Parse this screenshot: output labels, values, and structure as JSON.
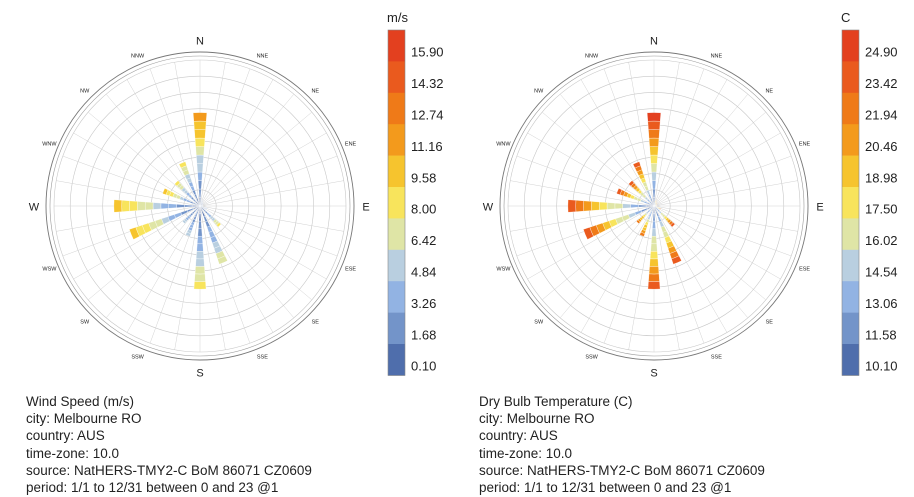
{
  "chart_data": [
    {
      "type": "windrose",
      "directions": [
        "N",
        "NNE",
        "NE",
        "ENE",
        "E",
        "ESE",
        "SE",
        "SSE",
        "S",
        "SSW",
        "SW",
        "WSW",
        "W",
        "WNW",
        "NW",
        "NNW"
      ],
      "legend": {
        "unit": "m/s",
        "labels": [
          "15.90",
          "14.32",
          "12.74",
          "11.16",
          "9.58",
          "8.00",
          "6.42",
          "4.84",
          "3.26",
          "1.68",
          "0.10"
        ],
        "colors": [
          "#e3401f",
          "#ea5a1e",
          "#ef7a18",
          "#f39a1c",
          "#f6c42e",
          "#f8e45c",
          "#dfe5a6",
          "#b9cfe0",
          "#92b3e3",
          "#7394c9",
          "#4f6eac"
        ]
      },
      "petals_max_level": [
        {
          "dir": 0.0,
          "r": 0.64,
          "top": 3
        },
        {
          "dir": 22.5,
          "r": 0.04,
          "top": 9
        },
        {
          "dir": 45.0,
          "r": 0.03,
          "top": 9
        },
        {
          "dir": 67.5,
          "r": 0.02,
          "top": 9
        },
        {
          "dir": 90.0,
          "r": 0.02,
          "top": 9
        },
        {
          "dir": 112.5,
          "r": 0.05,
          "top": 8
        },
        {
          "dir": 135.0,
          "r": 0.19,
          "top": 5
        },
        {
          "dir": 157.5,
          "r": 0.42,
          "top": 6
        },
        {
          "dir": 180.0,
          "r": 0.57,
          "top": 5
        },
        {
          "dir": 202.5,
          "r": 0.22,
          "top": 7
        },
        {
          "dir": 225.0,
          "r": 0.16,
          "top": 7
        },
        {
          "dir": 247.5,
          "r": 0.51,
          "top": 4
        },
        {
          "dir": 270.0,
          "r": 0.59,
          "top": 4
        },
        {
          "dir": 292.5,
          "r": 0.27,
          "top": 4
        },
        {
          "dir": 315.0,
          "r": 0.23,
          "top": 5
        },
        {
          "dir": 337.5,
          "r": 0.32,
          "top": 5
        }
      ],
      "title": "Wind Speed (m/s)",
      "info": [
        "Wind Speed (m/s)",
        "city: Melbourne RO",
        "country: AUS",
        "time-zone: 10.0",
        "source: NatHERS-TMY2-C BoM 86071 CZ0609",
        "period: 1/1 to 12/31 between 0 and 23 @1"
      ]
    },
    {
      "type": "windrose",
      "directions": [
        "N",
        "NNE",
        "NE",
        "ENE",
        "E",
        "ESE",
        "SE",
        "SSE",
        "S",
        "SSW",
        "SW",
        "WSW",
        "W",
        "WNW",
        "NW",
        "NNW"
      ],
      "legend": {
        "unit": "C",
        "labels": [
          "24.90",
          "23.42",
          "21.94",
          "20.46",
          "18.98",
          "17.50",
          "16.02",
          "14.54",
          "13.06",
          "11.58",
          "10.10"
        ],
        "colors": [
          "#e3401f",
          "#ea5a1e",
          "#ef7a18",
          "#f39a1c",
          "#f6c42e",
          "#f8e45c",
          "#dfe5a6",
          "#b9cfe0",
          "#92b3e3",
          "#7394c9",
          "#4f6eac"
        ]
      },
      "petals_max_level": [
        {
          "dir": 0.0,
          "r": 0.64,
          "top": 0
        },
        {
          "dir": 22.5,
          "r": 0.04,
          "top": 3
        },
        {
          "dir": 45.0,
          "r": 0.03,
          "top": 2
        },
        {
          "dir": 67.5,
          "r": 0.02,
          "top": 2
        },
        {
          "dir": 90.0,
          "r": 0.02,
          "top": 3
        },
        {
          "dir": 112.5,
          "r": 0.05,
          "top": 2
        },
        {
          "dir": 135.0,
          "r": 0.19,
          "top": 1
        },
        {
          "dir": 157.5,
          "r": 0.42,
          "top": 1
        },
        {
          "dir": 180.0,
          "r": 0.57,
          "top": 1
        },
        {
          "dir": 202.5,
          "r": 0.22,
          "top": 2
        },
        {
          "dir": 225.0,
          "r": 0.16,
          "top": 2
        },
        {
          "dir": 247.5,
          "r": 0.51,
          "top": 1
        },
        {
          "dir": 270.0,
          "r": 0.59,
          "top": 1
        },
        {
          "dir": 292.5,
          "r": 0.27,
          "top": 1
        },
        {
          "dir": 315.0,
          "r": 0.23,
          "top": 1
        },
        {
          "dir": 337.5,
          "r": 0.32,
          "top": 1
        }
      ],
      "title": "Dry Bulb Temperature (C)",
      "info": [
        "Dry Bulb Temperature (C)",
        "city: Melbourne RO",
        "country: AUS",
        "time-zone: 10.0",
        "source: NatHERS-TMY2-C BoM 86071 CZ0609",
        "period: 1/1 to 12/31 between 0 and 23 @1"
      ]
    }
  ]
}
